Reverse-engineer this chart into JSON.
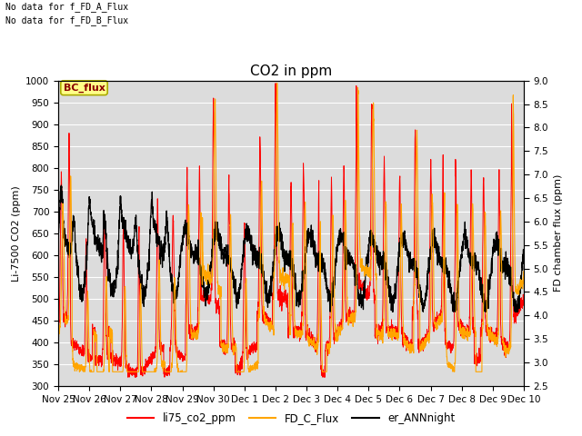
{
  "title": "CO2 in ppm",
  "ylabel_left": "Li-7500 CO2 (ppm)",
  "ylabel_right": "FD chamber flux (ppm)",
  "ylim_left": [
    300,
    1000
  ],
  "ylim_right": [
    2.5,
    9.0
  ],
  "xtick_labels": [
    "Nov 25",
    "Nov 26",
    "Nov 27",
    "Nov 28",
    "Nov 29",
    "Nov 30",
    "Dec 1",
    "Dec 2",
    "Dec 3",
    "Dec 4",
    "Dec 5",
    "Dec 6",
    "Dec 7",
    "Dec 8",
    "Dec 9",
    "Dec 10"
  ],
  "top_text_1": "No data for f_FD_A_Flux",
  "top_text_2": "No data for f_FD_B_Flux",
  "bc_flux_label": "BC_flux",
  "legend_items": [
    "li75_co2_ppm",
    "FD_C_Flux",
    "er_ANNnight"
  ],
  "color_red": "#FF0000",
  "color_orange": "#FFA500",
  "color_black": "#000000",
  "background_color": "#DCDCDC",
  "grid_color": "#FFFFFF",
  "fig_bg": "#FFFFFF",
  "title_fontsize": 11,
  "label_fontsize": 8,
  "tick_fontsize": 7.5,
  "yticks_left": [
    300,
    350,
    400,
    450,
    500,
    550,
    600,
    650,
    700,
    750,
    800,
    850,
    900,
    950,
    1000
  ],
  "yticks_right": [
    2.5,
    3.0,
    3.5,
    4.0,
    4.5,
    5.0,
    5.5,
    6.0,
    6.5,
    7.0,
    7.5,
    8.0,
    8.5,
    9.0
  ]
}
